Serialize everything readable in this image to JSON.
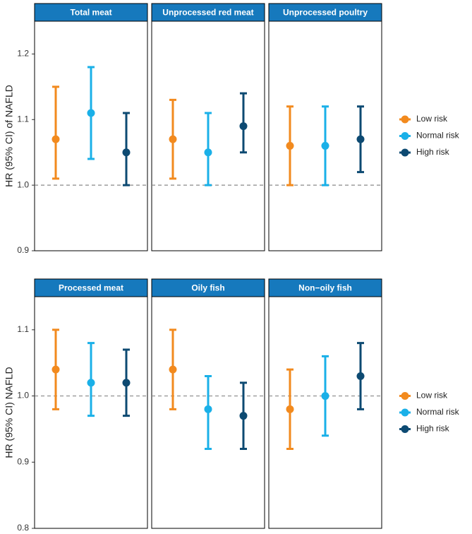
{
  "chart_data": [
    {
      "type": "errorbar",
      "y_label": "HR (95% CI) of NAFLD",
      "ylim": [
        0.9,
        1.25
      ],
      "yticks": [
        0.9,
        {
          "value": 1,
          "label": "1.0"
        },
        1.1,
        1.2
      ],
      "hline": 1,
      "series": [
        {
          "name": "Low risk",
          "color": "#f28a1e"
        },
        {
          "name": "Normal risk",
          "color": "#1ab0e8"
        },
        {
          "name": "High risk",
          "color": "#0d4a72"
        }
      ],
      "panels": [
        {
          "title": "Total meat",
          "values": [
            1.07,
            1.11,
            1.05
          ],
          "lower": [
            1.01,
            1.04,
            1.0
          ],
          "upper": [
            1.15,
            1.18,
            1.11
          ]
        },
        {
          "title": "Unprocessed red meat",
          "values": [
            1.07,
            1.05,
            1.09
          ],
          "lower": [
            1.01,
            1.0,
            1.05
          ],
          "upper": [
            1.13,
            1.11,
            1.14
          ]
        },
        {
          "title": "Unprocessed poultry",
          "values": [
            1.06,
            1.06,
            1.07
          ],
          "lower": [
            1.0,
            1.0,
            1.02
          ],
          "upper": [
            1.12,
            1.12,
            1.12
          ]
        }
      ]
    },
    {
      "type": "errorbar",
      "y_label": "HR (95% CI) NAFLD",
      "ylim": [
        0.8,
        1.15
      ],
      "yticks": [
        0.8,
        0.9,
        {
          "value": 1,
          "label": "1.0"
        },
        1.1
      ],
      "hline": 1,
      "series": [
        {
          "name": "Low risk",
          "color": "#f28a1e"
        },
        {
          "name": "Normal risk",
          "color": "#1ab0e8"
        },
        {
          "name": "High risk",
          "color": "#0d4a72"
        }
      ],
      "panels": [
        {
          "title": "Processed meat",
          "values": [
            1.04,
            1.02,
            1.02
          ],
          "lower": [
            0.98,
            0.97,
            0.97
          ],
          "upper": [
            1.1,
            1.08,
            1.07
          ]
        },
        {
          "title": "Oily fish",
          "values": [
            1.04,
            0.98,
            0.97
          ],
          "lower": [
            0.98,
            0.92,
            0.92
          ],
          "upper": [
            1.1,
            1.03,
            1.02
          ]
        },
        {
          "title": "Non−oily fish",
          "values": [
            0.98,
            1.0,
            1.03
          ],
          "lower": [
            0.92,
            0.94,
            0.98
          ],
          "upper": [
            1.04,
            1.06,
            1.08
          ]
        }
      ]
    }
  ]
}
